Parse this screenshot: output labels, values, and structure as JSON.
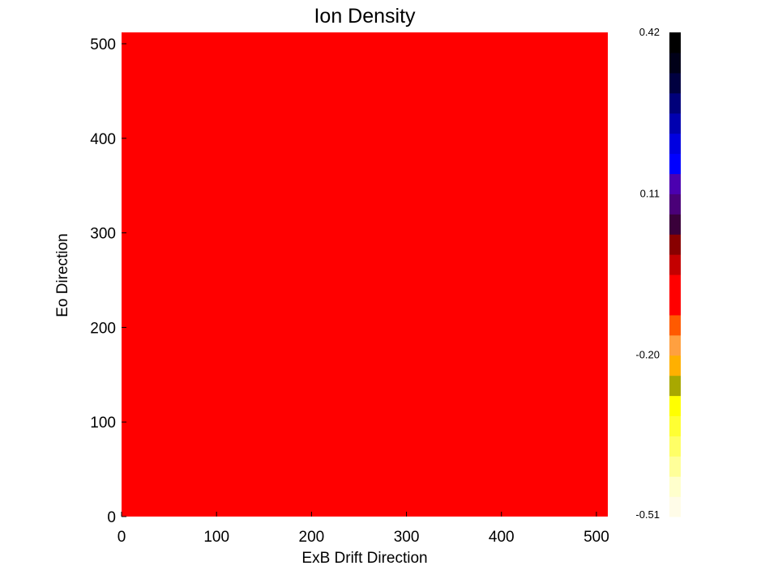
{
  "chart_data": {
    "type": "heatmap",
    "title": "Ion Density",
    "xlabel": "ExB Drift Direction",
    "ylabel": "Eo Direction",
    "xlim": [
      0,
      512
    ],
    "ylim": [
      0,
      512
    ],
    "x_ticks": [
      0,
      100,
      200,
      300,
      400,
      500
    ],
    "y_ticks": [
      0,
      100,
      200,
      300,
      400,
      500
    ],
    "grid": false,
    "field_color": "#ff0000",
    "colorbar": {
      "range": [
        -0.51,
        0.42
      ],
      "tick_labels": [
        "0.42",
        "0.11",
        "-0.20",
        "-0.51"
      ],
      "tick_values": [
        0.42,
        0.11,
        -0.2,
        -0.51
      ],
      "colors": [
        "#fffce8",
        "#ffffcc",
        "#ffff99",
        "#ffff66",
        "#ffff33",
        "#ffff00",
        "#a8a800",
        "#ffb000",
        "#ffa040",
        "#ff5a00",
        "#ff0000",
        "#ff0000",
        "#c40000",
        "#880000",
        "#3a003a",
        "#4a0078",
        "#4b00b0",
        "#0000ff",
        "#0000e0",
        "#0000b0",
        "#00007a",
        "#000040",
        "#000018",
        "#000000"
      ]
    }
  }
}
